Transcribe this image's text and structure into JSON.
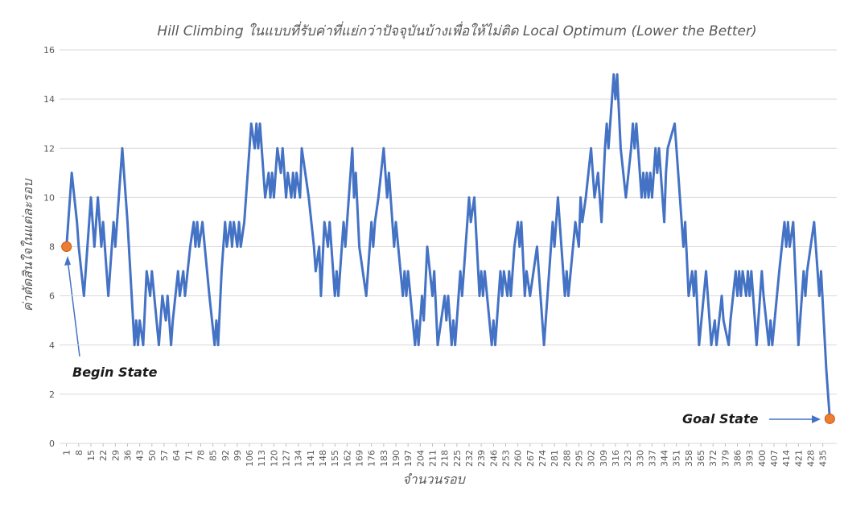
{
  "chart_data": {
    "type": "line",
    "title": "Hill Climbing ในแบบที่รับค่าที่แย่กว่าปัจจุบันบ้างเพื่อให้ไม่ติด Local Optimum (Lower the Better)",
    "x_label": "จำนวนรอบ",
    "y_label": "ค่าตัดสินใจในแต่ละรอบ",
    "annotations": [
      "Begin State",
      "Goal State"
    ],
    "color": "#4472c4",
    "marker_color": "#ed7d31",
    "grid": true,
    "xlim": [
      -3,
      443
    ],
    "ylim": [
      0,
      16
    ],
    "yticks": [
      0,
      2,
      4,
      6,
      8,
      10,
      12,
      14,
      16
    ],
    "xticks": [
      1,
      8,
      15,
      22,
      29,
      36,
      43,
      50,
      57,
      64,
      71,
      78,
      85,
      92,
      99,
      106,
      113,
      120,
      127,
      134,
      141,
      148,
      155,
      162,
      169,
      176,
      183,
      190,
      197,
      204,
      211,
      218,
      225,
      232,
      239,
      246,
      253,
      260,
      267,
      274,
      281,
      288,
      295,
      302,
      309,
      316,
      323,
      330,
      337,
      344,
      351,
      358,
      365,
      372,
      379,
      386,
      393,
      400,
      407,
      414,
      421,
      428,
      435
    ],
    "x": [
      1,
      4,
      7,
      8,
      11,
      15,
      17,
      19,
      21,
      22,
      25,
      28,
      29,
      30,
      33,
      36,
      40,
      41,
      42,
      43,
      45,
      47,
      49,
      50,
      54,
      55,
      56,
      58,
      59,
      61,
      62,
      65,
      66,
      68,
      69,
      72,
      74,
      75,
      76,
      77,
      79,
      83,
      86,
      87,
      88,
      90,
      92,
      93,
      95,
      96,
      97,
      99,
      100,
      101,
      103,
      107,
      109,
      110,
      111,
      112,
      115,
      117,
      118,
      119,
      120,
      122,
      124,
      125,
      127,
      128,
      130,
      131,
      132,
      133,
      135,
      136,
      140,
      143,
      144,
      146,
      147,
      149,
      151,
      152,
      154,
      155,
      156,
      157,
      160,
      161,
      165,
      166,
      167,
      169,
      173,
      176,
      177,
      178,
      180,
      183,
      185,
      186,
      189,
      190,
      194,
      195,
      196,
      197,
      201,
      202,
      203,
      205,
      206,
      208,
      211,
      212,
      214,
      216,
      218,
      219,
      220,
      222,
      223,
      224,
      227,
      228,
      232,
      233,
      235,
      238,
      239,
      240,
      241,
      245,
      246,
      247,
      250,
      251,
      252,
      254,
      255,
      256,
      258,
      260,
      261,
      262,
      264,
      265,
      267,
      271,
      275,
      280,
      281,
      283,
      286,
      287,
      288,
      289,
      293,
      295,
      296,
      297,
      299,
      302,
      304,
      306,
      308,
      310,
      311,
      312,
      315,
      316,
      317,
      319,
      322,
      325,
      326,
      327,
      328,
      331,
      332,
      333,
      334,
      335,
      336,
      337,
      339,
      340,
      341,
      344,
      345,
      346,
      350,
      354,
      355,
      356,
      358,
      360,
      361,
      362,
      364,
      368,
      369,
      371,
      373,
      374,
      377,
      378,
      381,
      382,
      385,
      386,
      387,
      388,
      389,
      391,
      392,
      393,
      394,
      397,
      400,
      401,
      404,
      405,
      406,
      410,
      413,
      414,
      415,
      416,
      418,
      421,
      422,
      424,
      425,
      426,
      430,
      433,
      434,
      437,
      439
    ],
    "values": [
      8,
      11,
      9,
      8,
      6,
      10,
      8,
      10,
      8,
      9,
      6,
      9,
      8,
      9,
      12,
      9,
      4,
      5,
      4,
      5,
      4,
      7,
      6,
      7,
      4,
      5,
      6,
      5,
      6,
      4,
      5,
      7,
      6,
      7,
      6,
      8,
      9,
      8,
      9,
      8,
      9,
      6,
      4,
      5,
      4,
      7,
      9,
      8,
      9,
      8,
      9,
      8,
      9,
      8,
      9,
      13,
      12,
      13,
      12,
      13,
      10,
      11,
      10,
      11,
      10,
      12,
      11,
      12,
      10,
      11,
      10,
      11,
      10,
      11,
      10,
      12,
      10,
      8,
      7,
      8,
      6,
      9,
      8,
      9,
      7,
      6,
      7,
      6,
      9,
      8,
      12,
      10,
      11,
      8,
      6,
      9,
      8,
      9,
      10,
      12,
      10,
      11,
      8,
      9,
      6,
      7,
      6,
      7,
      4,
      5,
      4,
      6,
      5,
      8,
      6,
      7,
      4,
      5,
      6,
      5,
      6,
      4,
      5,
      4,
      7,
      6,
      10,
      9,
      10,
      6,
      7,
      6,
      7,
      4,
      5,
      4,
      7,
      6,
      7,
      6,
      7,
      6,
      8,
      9,
      8,
      9,
      6,
      7,
      6,
      8,
      4,
      9,
      8,
      10,
      7,
      6,
      7,
      6,
      9,
      8,
      10,
      9,
      10,
      12,
      10,
      11,
      9,
      12,
      13,
      12,
      15,
      14,
      15,
      12,
      10,
      12,
      13,
      12,
      13,
      10,
      11,
      10,
      11,
      10,
      11,
      10,
      12,
      11,
      12,
      9,
      11,
      12,
      13,
      9,
      8,
      9,
      6,
      7,
      6,
      7,
      4,
      7,
      6,
      4,
      5,
      4,
      6,
      5,
      4,
      5,
      7,
      6,
      7,
      6,
      7,
      6,
      7,
      6,
      7,
      4,
      7,
      6,
      4,
      5,
      4,
      7,
      9,
      8,
      9,
      8,
      9,
      4,
      5,
      7,
      6,
      7,
      9,
      6,
      7,
      3,
      1
    ]
  }
}
